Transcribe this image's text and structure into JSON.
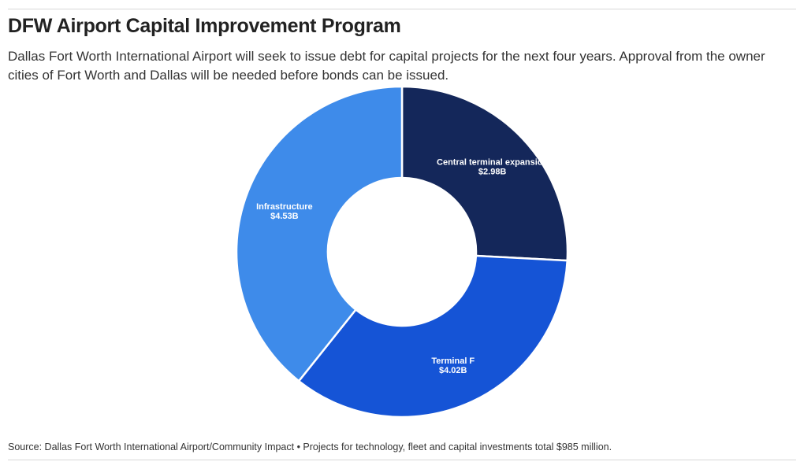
{
  "header": {
    "title": "DFW Airport Capital Improvement Program",
    "subtitle": "Dallas Fort Worth International Airport will seek to issue debt for capital projects for the next four years. Approval from the owner cities of Fort Worth and Dallas will be needed before bonds can be issued."
  },
  "footer": {
    "source": "Source: Dallas Fort Worth International Airport/Community Impact • Projects for technology, fleet and capital investments total $985 million."
  },
  "chart_data": {
    "type": "pie",
    "variant": "donut",
    "unit": "billion USD",
    "slices": [
      {
        "name": "Central terminal expansion",
        "value": 2.98,
        "value_label": "$2.98B",
        "color": "#14275a"
      },
      {
        "name": "Terminal F",
        "value": 4.02,
        "value_label": "$4.02B",
        "color": "#1554d6"
      },
      {
        "name": "Infrastructure",
        "value": 4.53,
        "value_label": "$4.53B",
        "color": "#3e8bea"
      }
    ],
    "start_angle": "12 o'clock",
    "direction": "clockwise",
    "legend": "none",
    "labels": "inside slices"
  }
}
